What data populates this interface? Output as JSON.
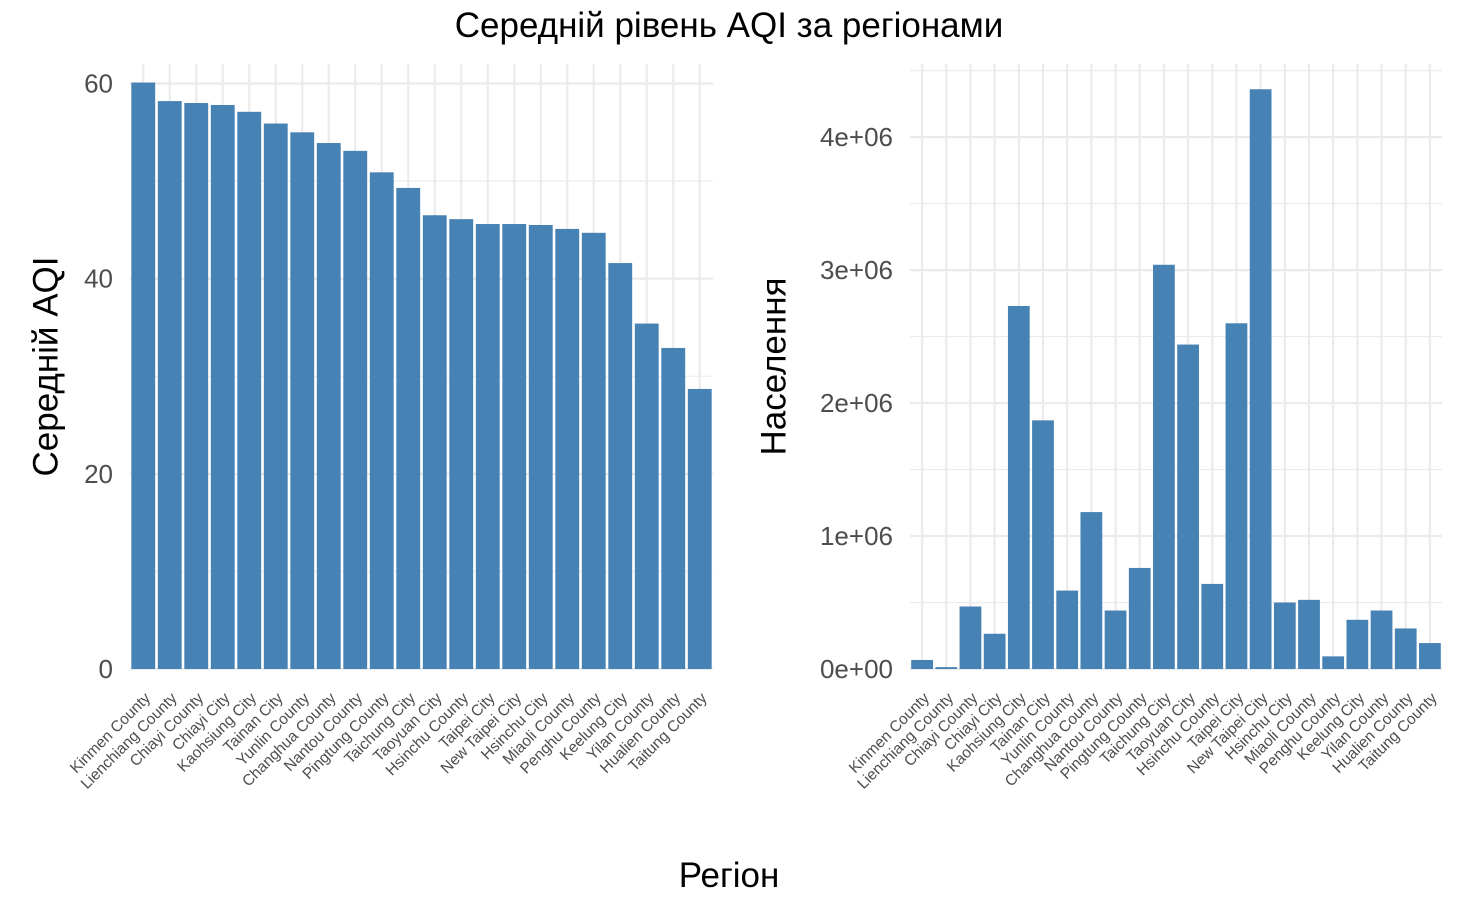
{
  "chart_data": {
    "title": "Середній рівень AQI за регіонами",
    "xlabel": "Регіон",
    "bar_color": "#4682B4",
    "grid_color": "#EBEBEB",
    "panels": [
      {
        "type": "bar",
        "ylabel": "Середній AQI",
        "ylim": [
          0,
          62
        ],
        "yticks": [
          0,
          20,
          40,
          60
        ],
        "ytick_labels": [
          "0",
          "20",
          "40",
          "60"
        ],
        "categories": [
          "Kinmen County",
          "Lienchiang County",
          "Chiayi County",
          "Chiayi City",
          "Kaohsiung City",
          "Tainan City",
          "Yunlin County",
          "Changhua County",
          "Nantou County",
          "Pingtung County",
          "Taichung City",
          "Taoyuan City",
          "Hsinchu County",
          "Taipei City",
          "New Taipei City",
          "Hsinchu City",
          "Miaoli County",
          "Penghu County",
          "Keelung City",
          "Yilan County",
          "Hualien County",
          "Taitung County"
        ],
        "values": [
          60.1,
          58.2,
          58.0,
          57.8,
          57.1,
          55.9,
          55.0,
          53.9,
          53.1,
          50.9,
          49.3,
          46.5,
          46.1,
          45.6,
          45.6,
          45.5,
          45.1,
          44.7,
          41.6,
          35.4,
          32.9,
          28.7
        ]
      },
      {
        "type": "bar",
        "ylabel": "Населення",
        "ylim": [
          0,
          4550000
        ],
        "yticks": [
          0,
          1000000,
          2000000,
          3000000,
          4000000
        ],
        "ytick_labels": [
          "0e+00",
          "1e+06",
          "2e+06",
          "3e+06",
          "4e+06"
        ],
        "categories": [
          "Kinmen County",
          "Lienchiang County",
          "Chiayi County",
          "Chiayi City",
          "Kaohsiung City",
          "Tainan City",
          "Yunlin County",
          "Changhua County",
          "Nantou County",
          "Pingtung County",
          "Taichung City",
          "Taoyuan City",
          "Hsinchu County",
          "Taipei City",
          "New Taipei City",
          "Hsinchu City",
          "Miaoli County",
          "Penghu County",
          "Keelung City",
          "Yilan County",
          "Hualien County",
          "Taitung County"
        ],
        "values": [
          68000,
          14000,
          470000,
          265000,
          2730000,
          1870000,
          590000,
          1180000,
          440000,
          760000,
          3040000,
          2440000,
          640000,
          2600000,
          4360000,
          500000,
          520000,
          95000,
          370000,
          440000,
          305000,
          195000
        ]
      }
    ]
  }
}
